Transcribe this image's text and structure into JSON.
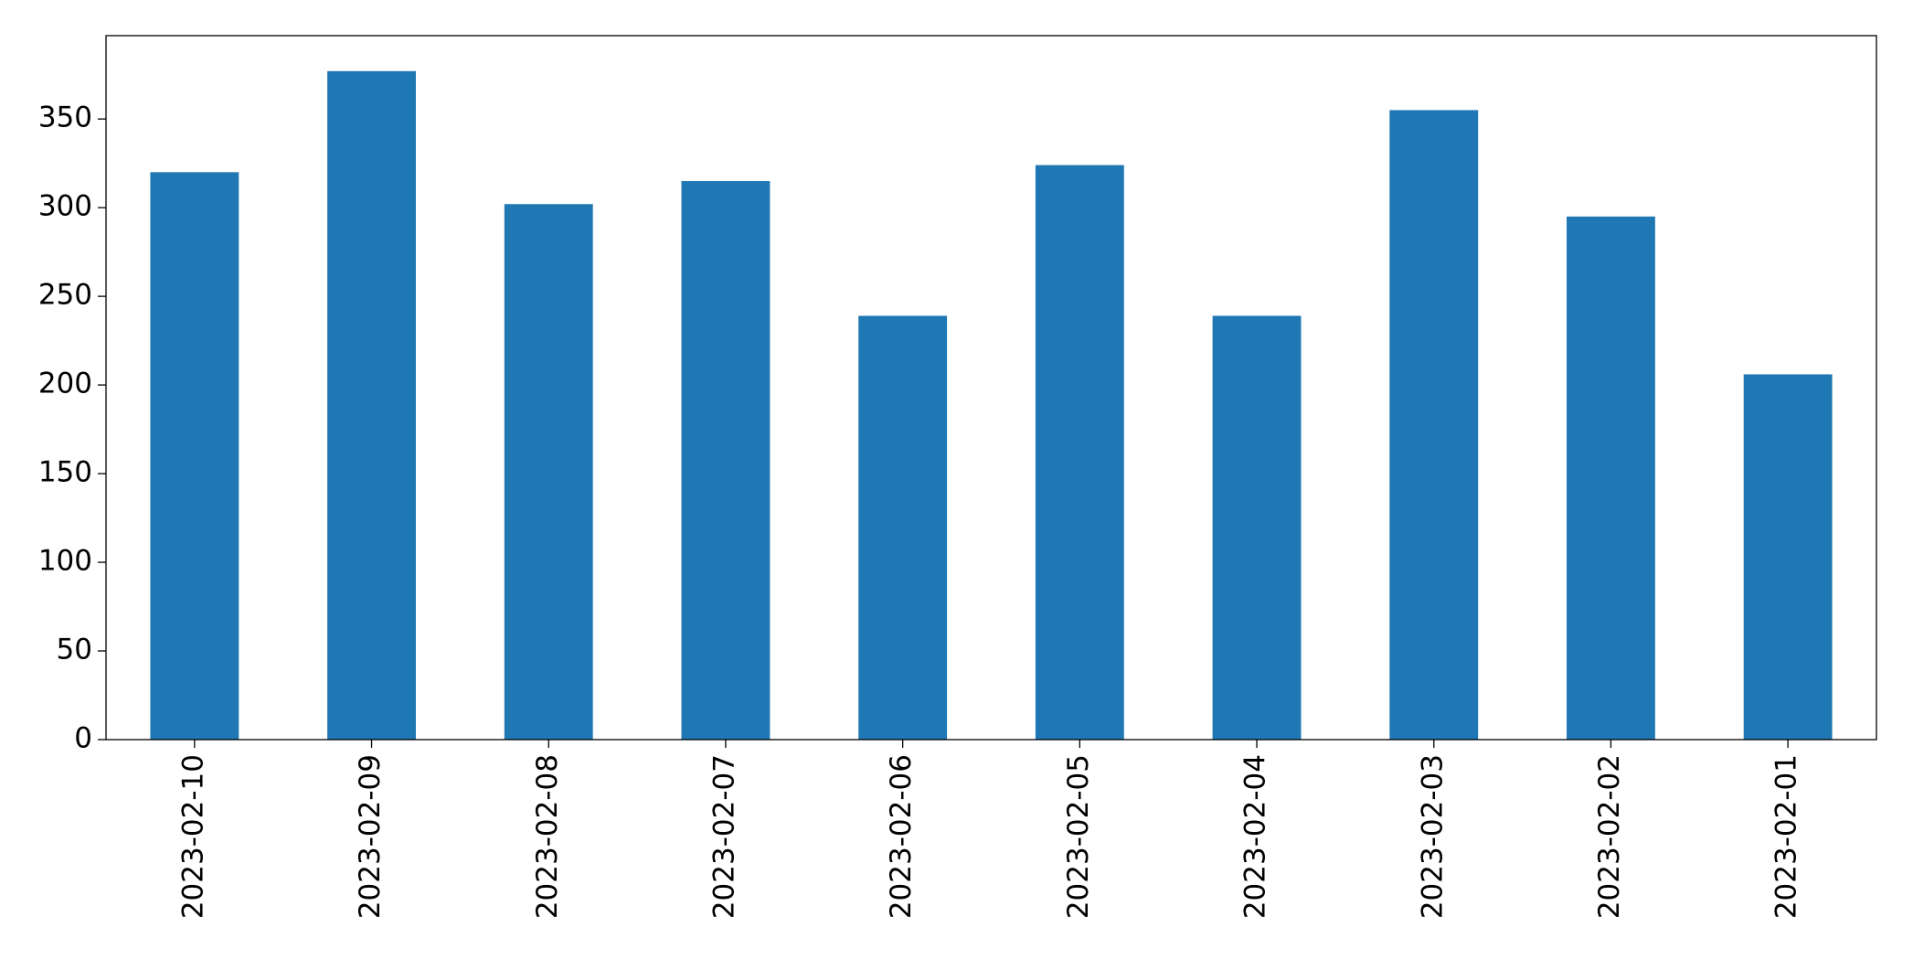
{
  "chart_data": {
    "type": "bar",
    "categories": [
      "2023-02-10",
      "2023-02-09",
      "2023-02-08",
      "2023-02-07",
      "2023-02-06",
      "2023-02-05",
      "2023-02-04",
      "2023-02-03",
      "2023-02-02",
      "2023-02-01"
    ],
    "values": [
      320,
      377,
      302,
      315,
      239,
      324,
      239,
      355,
      295,
      206
    ],
    "color": "#1f77b4",
    "ylim": [
      0,
      397
    ],
    "yticks": [
      0,
      50,
      100,
      150,
      200,
      250,
      300,
      350
    ],
    "grid": false
  }
}
